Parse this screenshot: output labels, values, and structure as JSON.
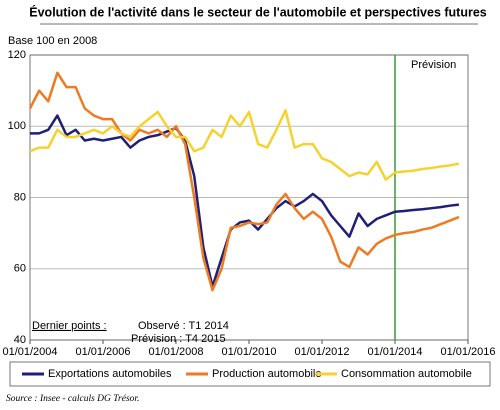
{
  "chart_data": {
    "type": "line",
    "title": "Évolution de l'activité dans le secteur de l'automobile et perspectives futures",
    "subtitle": "Base 100 en 2008",
    "forecast_label": "Prévision",
    "forecast_x": 2014,
    "annotations": [
      "Dernier points :",
      "Observé : T1 2014",
      "Prévision : T4 2015"
    ],
    "source": "Source : Insee - calculs DG Trésor.",
    "x": [
      2004,
      2004.25,
      2004.5,
      2004.75,
      2005,
      2005.25,
      2005.5,
      2005.75,
      2006,
      2006.25,
      2006.5,
      2006.75,
      2007,
      2007.25,
      2007.5,
      2007.75,
      2008,
      2008.25,
      2008.5,
      2008.75,
      2009,
      2009.25,
      2009.5,
      2009.75,
      2010,
      2010.25,
      2010.5,
      2010.75,
      2011,
      2011.25,
      2011.5,
      2011.75,
      2012,
      2012.25,
      2012.5,
      2012.75,
      2013,
      2013.25,
      2013.5,
      2013.75,
      2014,
      2014.25,
      2014.5,
      2014.75,
      2015,
      2015.25,
      2015.5,
      2015.75
    ],
    "series": [
      {
        "name": "Exportations automobiles",
        "color": "#1f1f78",
        "values": [
          98,
          98,
          99,
          103,
          97.5,
          99,
          96,
          96.5,
          96,
          96.5,
          97,
          94,
          96,
          97,
          97.5,
          98.5,
          99.5,
          96,
          86,
          66,
          55,
          63,
          71,
          73,
          73.5,
          71,
          74,
          77,
          79,
          77.5,
          79,
          81,
          79,
          75,
          72,
          69,
          75.5,
          72,
          74,
          75,
          76,
          76.2,
          76.5,
          76.7,
          77,
          77.3,
          77.7,
          78
        ]
      },
      {
        "name": "Production automobile",
        "color": "#ee7a22",
        "values": [
          105,
          110,
          107,
          115,
          111,
          111,
          105,
          103,
          102,
          102,
          98,
          96,
          99,
          98,
          99,
          97,
          100,
          95,
          80,
          63,
          54,
          60,
          71.5,
          72,
          73,
          72.5,
          73,
          78,
          81,
          77,
          74,
          76,
          74,
          69,
          62,
          60.5,
          66,
          64,
          67,
          68.5,
          69.5,
          70,
          70.3,
          71,
          71.5,
          72.5,
          73.5,
          74.5
        ]
      },
      {
        "name": "Consommation automobile",
        "color": "#f5d230",
        "values": [
          93,
          94,
          94,
          99,
          97,
          97,
          98,
          99,
          98,
          100,
          98,
          97,
          100,
          102,
          104,
          100,
          97,
          97,
          93,
          94,
          99,
          97,
          103,
          100,
          104,
          95,
          94,
          99,
          104.5,
          94,
          95,
          95,
          91,
          90,
          88,
          86,
          87,
          86.5,
          90,
          85,
          87,
          87.3,
          87.5,
          88,
          88.3,
          88.7,
          89,
          89.5
        ]
      }
    ],
    "xlim": [
      2004,
      2016
    ],
    "xticks": [
      {
        "value": 2004,
        "label": "01/01/2004"
      },
      {
        "value": 2006,
        "label": "01/01/2006"
      },
      {
        "value": 2008,
        "label": "01/01/2008"
      },
      {
        "value": 2010,
        "label": "01/01/2010"
      },
      {
        "value": 2012,
        "label": "01/01/2012"
      },
      {
        "value": 2014,
        "label": "01/01/2014"
      },
      {
        "value": 2016,
        "label": "01/01/2016"
      }
    ],
    "ylim": [
      40,
      120
    ],
    "yticks": [
      40,
      60,
      80,
      100,
      120
    ],
    "grid": true,
    "forecast_color": "#3a9a3a"
  }
}
